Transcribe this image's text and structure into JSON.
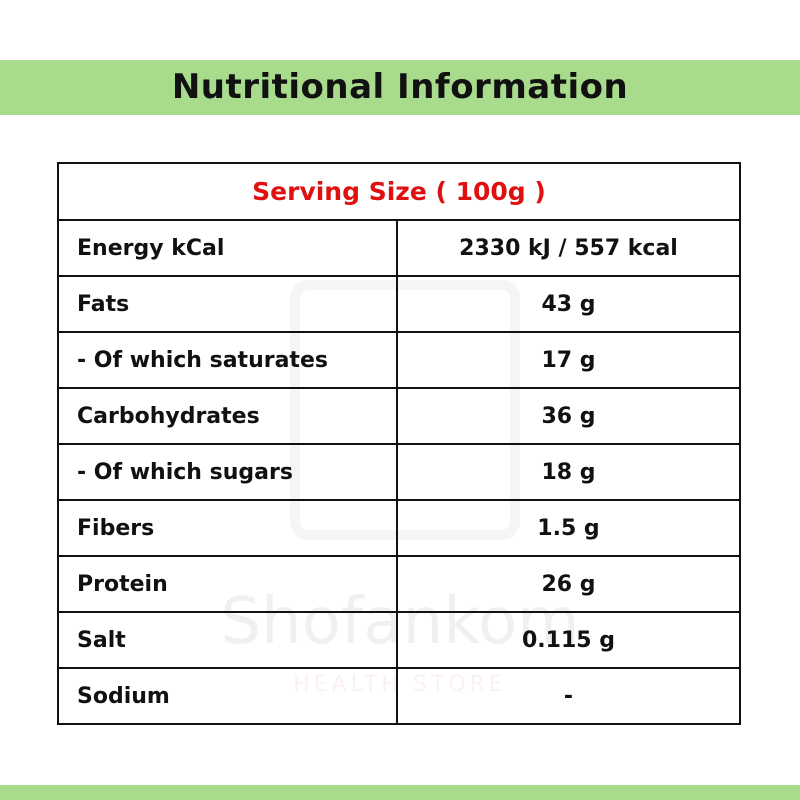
{
  "header": {
    "title": "Nutritional Information"
  },
  "watermark": {
    "brand": "Shofankom",
    "tagline": "HEALTH STORE"
  },
  "table": {
    "caption": "Serving Size ( 100g )",
    "rows": [
      [
        "Energy kCal",
        "2330 kJ / 557 kcal"
      ],
      [
        "Fats",
        "43 g"
      ],
      [
        "- Of which saturates",
        "17 g"
      ],
      [
        "Carbohydrates",
        "36 g"
      ],
      [
        "- Of which sugars",
        "18 g"
      ],
      [
        "Fibers",
        "1.5 g"
      ],
      [
        "Protein",
        "26 g"
      ],
      [
        "Salt",
        "0.115 g"
      ],
      [
        "Sodium",
        "-"
      ]
    ]
  }
}
